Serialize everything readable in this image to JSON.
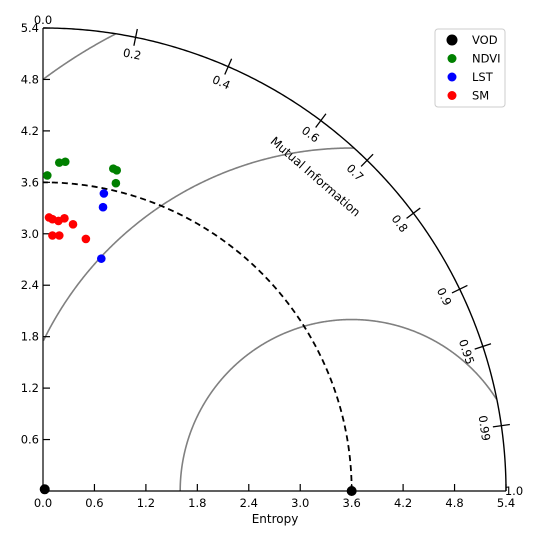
{
  "chart_data": {
    "type": "scatter",
    "subtype": "taylor-diagram",
    "xlabel": "Entropy",
    "arc_label": "Mutual Information",
    "xlim": [
      0,
      5.4
    ],
    "ylim": [
      0,
      5.4
    ],
    "x_ticks": [
      "0.0",
      "0.6",
      "1.2",
      "1.8",
      "2.4",
      "3.0",
      "3.6",
      "4.2",
      "4.8",
      "5.4"
    ],
    "y_ticks": [
      "0.0",
      "0.6",
      "1.2",
      "1.8",
      "2.4",
      "3.0",
      "3.6",
      "4.2",
      "4.8",
      "5.4"
    ],
    "arc_ticks": [
      "0.0",
      "0.2",
      "0.4",
      "0.6",
      "0.7",
      "0.8",
      "0.9",
      "0.95",
      "0.99",
      "1.0"
    ],
    "reference_radius": 3.6,
    "reference_point": {
      "x": 3.6,
      "y": 0.0
    },
    "contour_radii": [
      2.0,
      4.0
    ],
    "legend_position": "top-right",
    "series": [
      {
        "name": "VOD",
        "color": "#000000",
        "points": [
          {
            "x": 0.02,
            "y": 0.02
          }
        ]
      },
      {
        "name": "NDVI",
        "color": "#008000",
        "points": [
          {
            "x": 0.05,
            "y": 3.68
          },
          {
            "x": 0.19,
            "y": 3.83
          },
          {
            "x": 0.26,
            "y": 3.84
          },
          {
            "x": 0.82,
            "y": 3.76
          },
          {
            "x": 0.86,
            "y": 3.74
          },
          {
            "x": 0.85,
            "y": 3.59
          }
        ]
      },
      {
        "name": "LST",
        "color": "#0000ff",
        "points": [
          {
            "x": 0.71,
            "y": 3.47
          },
          {
            "x": 0.7,
            "y": 3.31
          },
          {
            "x": 0.68,
            "y": 2.71
          }
        ]
      },
      {
        "name": "SM",
        "color": "#ff0000",
        "points": [
          {
            "x": 0.07,
            "y": 3.19
          },
          {
            "x": 0.11,
            "y": 3.17
          },
          {
            "x": 0.18,
            "y": 3.15
          },
          {
            "x": 0.25,
            "y": 3.18
          },
          {
            "x": 0.35,
            "y": 3.11
          },
          {
            "x": 0.11,
            "y": 2.98
          },
          {
            "x": 0.19,
            "y": 2.98
          },
          {
            "x": 0.5,
            "y": 2.94
          }
        ]
      }
    ]
  }
}
